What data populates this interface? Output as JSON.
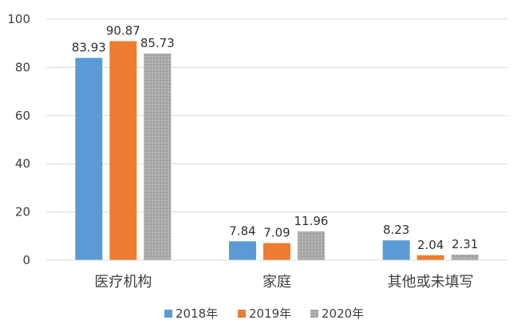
{
  "chart_data": {
    "type": "bar",
    "categories": [
      "医疗机构",
      "家庭",
      "其他或未填写"
    ],
    "series": [
      {
        "name": "2018年",
        "values": [
          83.93,
          7.84,
          8.23
        ],
        "color": "#5B9BD5",
        "pattern": "solid"
      },
      {
        "name": "2019年",
        "values": [
          90.87,
          7.09,
          2.04
        ],
        "color": "#ED7D31",
        "pattern": "solid"
      },
      {
        "name": "2020年",
        "values": [
          85.73,
          11.96,
          2.31
        ],
        "color": "#A5A5A5",
        "pattern": "dotted"
      }
    ],
    "y_ticks": [
      0,
      20,
      40,
      60,
      80,
      100
    ],
    "ylim": [
      0,
      100
    ],
    "grid": true,
    "legend_position": "bottom-center"
  },
  "colors": {
    "axis": "#d9d9d9",
    "grid": "#d9d9d9",
    "text": "#3f3f3f"
  }
}
